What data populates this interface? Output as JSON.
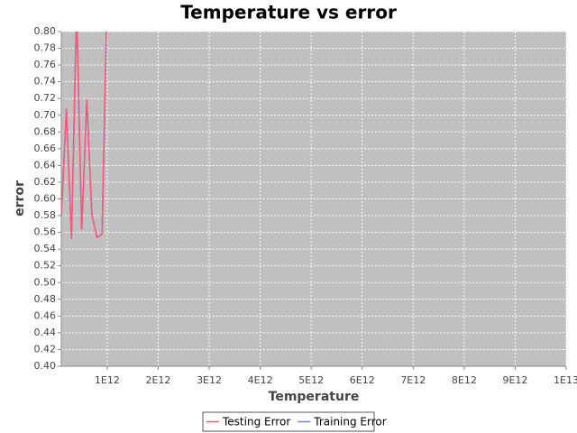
{
  "chart_data": {
    "type": "line",
    "title": "Temperature vs error",
    "x_label": "Temperature",
    "y_label": "error",
    "x": [
      100000000000.0,
      200000000000.0,
      300000000000.0,
      400000000000.0,
      500000000000.0,
      600000000000.0,
      700000000000.0,
      800000000000.0,
      900000000000.0,
      1000000000000.0
    ],
    "series": [
      {
        "name": "Testing Error",
        "color": "#ff5577",
        "values": [
          0.579,
          0.708,
          0.552,
          0.83,
          0.563,
          0.719,
          0.581,
          0.554,
          0.558,
          0.85
        ]
      },
      {
        "name": "Training Error",
        "color": "#7777ff",
        "values": [
          0.579,
          0.708,
          0.552,
          0.83,
          0.563,
          0.719,
          0.581,
          0.554,
          0.558,
          0.85
        ]
      }
    ],
    "xlim": [
      100000000000.0,
      10000000000000.0
    ],
    "ylim": [
      0.4,
      0.8
    ],
    "xticks": [
      {
        "value": 1000000000000.0,
        "label": "1E12"
      },
      {
        "value": 2000000000000.0,
        "label": "2E12"
      },
      {
        "value": 3000000000000.0,
        "label": "3E12"
      },
      {
        "value": 4000000000000.0,
        "label": "4E12"
      },
      {
        "value": 5000000000000.0,
        "label": "5E12"
      },
      {
        "value": 6000000000000.0,
        "label": "6E12"
      },
      {
        "value": 7000000000000.0,
        "label": "7E12"
      },
      {
        "value": 8000000000000.0,
        "label": "8E12"
      },
      {
        "value": 9000000000000.0,
        "label": "9E12"
      },
      {
        "value": 10000000000000.0,
        "label": "1E13"
      }
    ],
    "yticks": [
      {
        "value": 0.4,
        "label": "0.40"
      },
      0.42,
      0.44,
      0.46,
      0.48,
      {
        "value": 0.5,
        "label": "0.50"
      },
      0.52,
      0.54,
      0.56,
      0.58,
      {
        "value": 0.6,
        "label": "0.60"
      },
      0.62,
      0.64,
      0.66,
      0.68,
      {
        "value": 0.7,
        "label": "0.70"
      },
      0.72,
      0.74,
      0.76,
      0.78,
      {
        "value": 0.8,
        "label": "0.80"
      }
    ],
    "grid": true,
    "legend": "bottom"
  }
}
